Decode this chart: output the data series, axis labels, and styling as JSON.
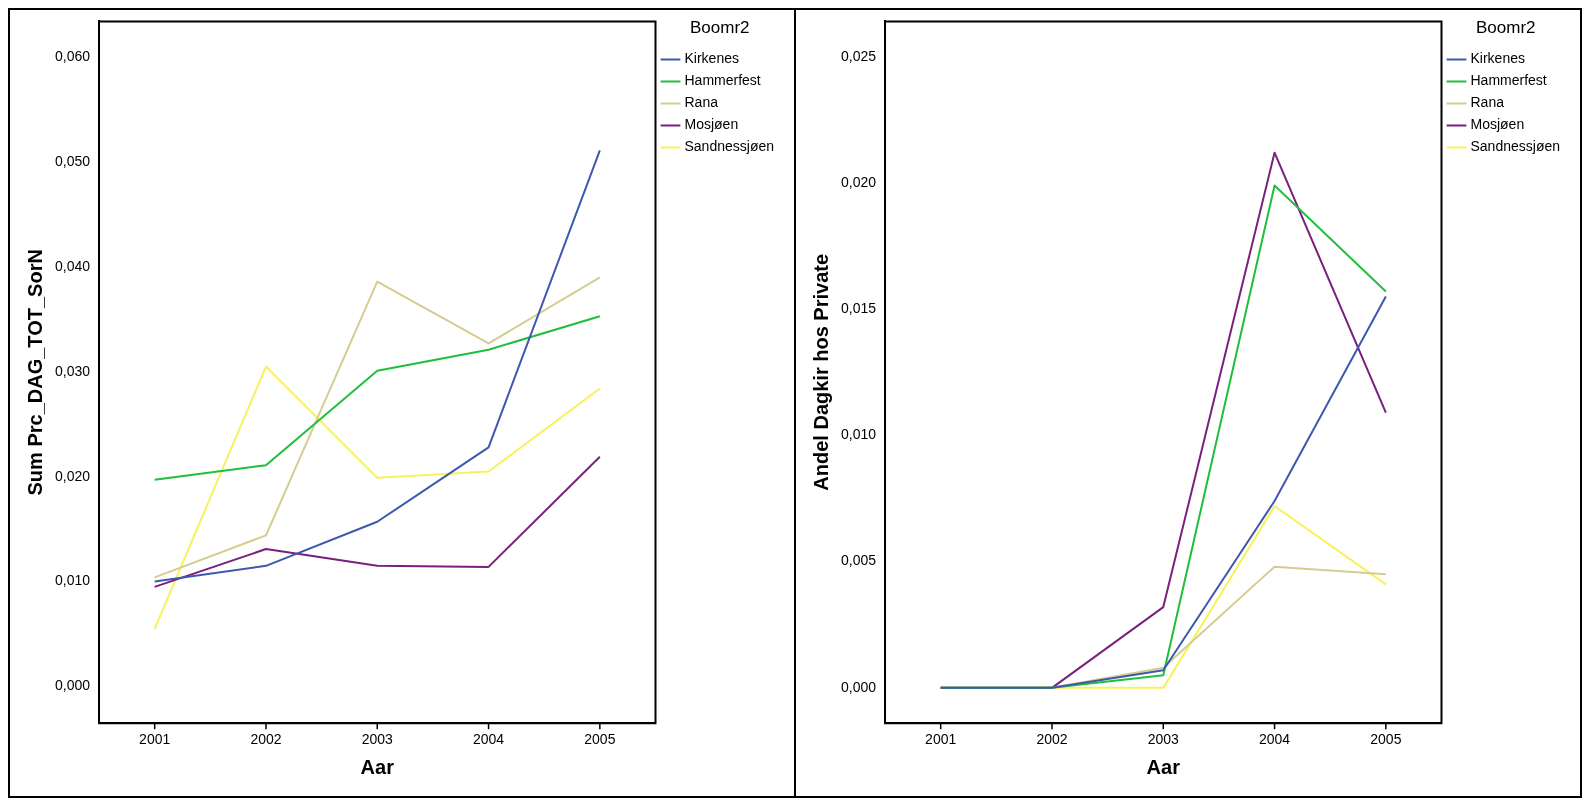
{
  "chart_data": [
    {
      "type": "line",
      "xlabel": "Aar",
      "ylabel": "Sum Prc_DAG_TOT_SorN",
      "legend_title": "Boomr2",
      "legend": "top right",
      "grid": false,
      "categories": [
        "2001",
        "2002",
        "2003",
        "2004",
        "2005"
      ],
      "ylim": [
        -0.0035,
        0.0634
      ],
      "yticks": [
        {
          "value": 0,
          "label": "0,000"
        },
        {
          "value": 0.01,
          "label": "0,010"
        },
        {
          "value": 0.02,
          "label": "0,020"
        },
        {
          "value": 0.03,
          "label": "0,030"
        },
        {
          "value": 0.04,
          "label": "0,040"
        },
        {
          "value": 0.05,
          "label": "0,050"
        },
        {
          "value": 0.06,
          "label": "0,060"
        }
      ],
      "series": [
        {
          "name": "Kirkenes",
          "color": "#3e58ac",
          "values": [
            0.01,
            0.0115,
            0.0157,
            0.0228,
            0.0511
          ]
        },
        {
          "name": "Hammerfest",
          "color": "#1fbf3b",
          "values": [
            0.0197,
            0.0211,
            0.0301,
            0.0321,
            0.0353
          ]
        },
        {
          "name": "Rana",
          "color": "#d4cd8f",
          "values": [
            0.0104,
            0.0144,
            0.0386,
            0.0327,
            0.039
          ]
        },
        {
          "name": "Mosjøen",
          "color": "#79207d",
          "values": [
            0.0095,
            0.0131,
            0.0115,
            0.0114,
            0.0219
          ]
        },
        {
          "name": "Sandnessjøen",
          "color": "#f8f25a",
          "values": [
            0.0055,
            0.0305,
            0.0199,
            0.0205,
            0.0284
          ]
        }
      ]
    },
    {
      "type": "line",
      "xlabel": "Aar",
      "ylabel": "Andel Dagkir hos Private",
      "legend_title": "Boomr2",
      "legend": "top right",
      "grid": false,
      "categories": [
        "2001",
        "2002",
        "2003",
        "2004",
        "2005"
      ],
      "ylim": [
        -0.0014,
        0.0264
      ],
      "yticks": [
        {
          "value": 0,
          "label": "0,000"
        },
        {
          "value": 0.005,
          "label": "0,005"
        },
        {
          "value": 0.01,
          "label": "0,010"
        },
        {
          "value": 0.015,
          "label": "0,015"
        },
        {
          "value": 0.02,
          "label": "0,020"
        },
        {
          "value": 0.025,
          "label": "0,025"
        }
      ],
      "series": [
        {
          "name": "Kirkenes",
          "color": "#3e58ac",
          "values": [
            0,
            0,
            0.0007,
            0.0074,
            0.0155
          ]
        },
        {
          "name": "Hammerfest",
          "color": "#1fbf3b",
          "values": [
            0,
            0,
            0.0005,
            0.0199,
            0.0157
          ]
        },
        {
          "name": "Rana",
          "color": "#d4cd8f",
          "values": [
            0,
            0,
            0.0008,
            0.0048,
            0.0045
          ]
        },
        {
          "name": "Mosjøen",
          "color": "#79207d",
          "values": [
            0,
            0,
            0.0032,
            0.0212,
            0.0109
          ]
        },
        {
          "name": "Sandnessjøen",
          "color": "#f8f25a",
          "values": [
            0,
            0,
            0,
            0.0072,
            0.0041
          ]
        }
      ]
    }
  ]
}
